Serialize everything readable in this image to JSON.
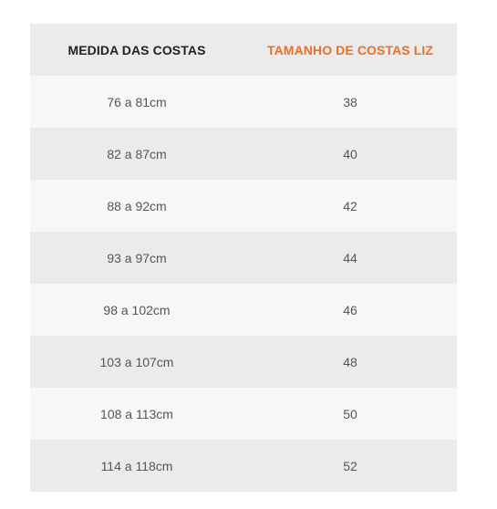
{
  "colors": {
    "header_bg": "#ebebeb",
    "row_light": "#f7f7f7",
    "row_dark": "#ebebeb",
    "accent": "#e8702a",
    "header_text": "#222222",
    "cell_text": "#555555"
  },
  "table": {
    "headers": [
      "MEDIDA DAS COSTAS",
      "TAMANHO DE COSTAS LIZ"
    ],
    "rows": [
      [
        "76 a 81cm",
        "38"
      ],
      [
        "82 a 87cm",
        "40"
      ],
      [
        "88 a 92cm",
        "42"
      ],
      [
        "93 a 97cm",
        "44"
      ],
      [
        "98 a 102cm",
        "46"
      ],
      [
        "103 a 107cm",
        "48"
      ],
      [
        "108 a 113cm",
        "50"
      ],
      [
        "114 a 118cm",
        "52"
      ]
    ]
  }
}
